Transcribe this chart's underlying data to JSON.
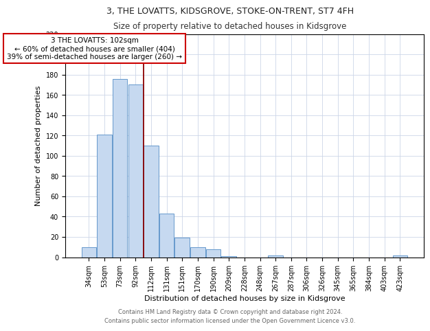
{
  "title": "3, THE LOVATTS, KIDSGROVE, STOKE-ON-TRENT, ST7 4FH",
  "subtitle": "Size of property relative to detached houses in Kidsgrove",
  "xlabel": "Distribution of detached houses by size in Kidsgrove",
  "ylabel": "Number of detached properties",
  "bar_labels": [
    "34sqm",
    "53sqm",
    "73sqm",
    "92sqm",
    "112sqm",
    "131sqm",
    "151sqm",
    "170sqm",
    "190sqm",
    "209sqm",
    "228sqm",
    "248sqm",
    "267sqm",
    "287sqm",
    "306sqm",
    "326sqm",
    "345sqm",
    "365sqm",
    "384sqm",
    "403sqm",
    "423sqm"
  ],
  "bar_values": [
    10,
    121,
    176,
    170,
    110,
    43,
    19,
    10,
    8,
    1,
    0,
    0,
    2,
    0,
    0,
    0,
    0,
    0,
    0,
    0,
    2
  ],
  "bar_color": "#c6d9f0",
  "bar_edge_color": "#6699cc",
  "vline_x_index": 3.5,
  "vline_color": "#8b0000",
  "annotation_title": "3 THE LOVATTS: 102sqm",
  "annotation_line1": "← 60% of detached houses are smaller (404)",
  "annotation_line2": "39% of semi-detached houses are larger (260) →",
  "annotation_box_color": "#ffffff",
  "annotation_box_edge": "#cc0000",
  "ylim": [
    0,
    220
  ],
  "yticks": [
    0,
    20,
    40,
    60,
    80,
    100,
    120,
    140,
    160,
    180,
    200,
    220
  ],
  "footer1": "Contains HM Land Registry data © Crown copyright and database right 2024.",
  "footer2": "Contains public sector information licensed under the Open Government Licence v3.0.",
  "title_fontsize": 9,
  "subtitle_fontsize": 8.5,
  "axis_label_fontsize": 8,
  "tick_fontsize": 7,
  "annotation_fontsize": 7.5,
  "footer_fontsize": 6
}
